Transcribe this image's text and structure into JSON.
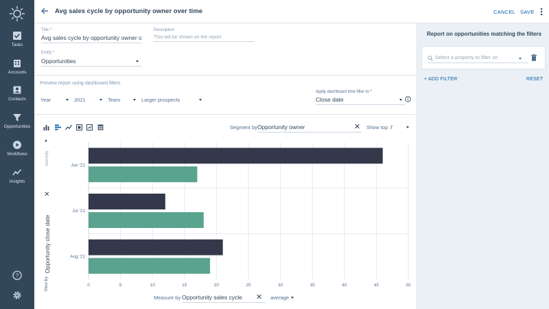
{
  "sidebar": {
    "items": [
      {
        "label": "Tasks",
        "icon": "tasks-icon"
      },
      {
        "label": "Accounts",
        "icon": "accounts-icon"
      },
      {
        "label": "Contacts",
        "icon": "contacts-icon"
      },
      {
        "label": "Opportunities",
        "icon": "opportunities-icon"
      },
      {
        "label": "Workflows",
        "icon": "workflows-icon"
      },
      {
        "label": "Insights",
        "icon": "insights-icon"
      }
    ]
  },
  "header": {
    "title": "Avg sales cycle by opportunity owner over time",
    "cancel": "CANCEL",
    "save": "SAVE"
  },
  "form": {
    "title_label": "Title *",
    "title_value": "Avg sales cycle by opportunity owner over time",
    "description_label": "Description",
    "description_placeholder": "This will be shown on the report",
    "entity_label": "Entity *",
    "entity_value": "Opportunities"
  },
  "preview": {
    "heading": "Preview report using dashboard filters",
    "filters": [
      "Year",
      "2021",
      "Team",
      "Larger prospects"
    ],
    "time_filter_label": "Apply dashboard time filter to *",
    "time_filter_value": "Close date"
  },
  "chart_controls": {
    "segment_label": "Segment by",
    "segment_value": "Opportunity owner",
    "show_top_label": "Show top",
    "show_top_value": "7",
    "granularity": "monthly",
    "view_by_label": "View by",
    "view_by_value": "Opportunity close date",
    "measure_label": "Measure by",
    "measure_value": "Opportunity sales cycle",
    "aggregation": "average"
  },
  "right_panel": {
    "title": "Report on opportunities matching the filters",
    "filter_placeholder": "Select a property to filter on",
    "add_filter": "+ ADD FILTER",
    "reset": "RESET"
  },
  "colors": {
    "sidebar": "#33475b",
    "series_dark": "#33394a",
    "series_teal": "#5aa38e",
    "link": "#0b5fa8"
  },
  "chart_data": {
    "type": "bar",
    "orientation": "horizontal",
    "categories": [
      "Jun '21",
      "Jul '21",
      "Aug '21"
    ],
    "series": [
      {
        "values": [
          46,
          12,
          21
        ]
      },
      {
        "values": [
          17,
          18,
          19
        ]
      }
    ],
    "xlim": [
      0,
      50
    ],
    "xticks": [
      0,
      5,
      10,
      15,
      20,
      25,
      30,
      35,
      40,
      45,
      50
    ],
    "grid": true
  }
}
